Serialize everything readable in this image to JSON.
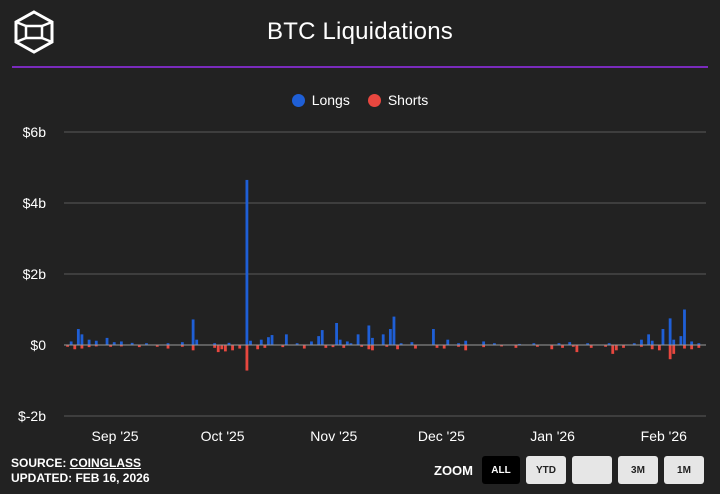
{
  "header": {
    "title": "BTC Liquidations"
  },
  "colors": {
    "longs": "#1f5fd6",
    "shorts": "#e8473f",
    "divider": "#7a2bbd",
    "background": "#222222"
  },
  "icons": {
    "logo": "cube-logo-icon"
  },
  "footer": {
    "source_prefix": "SOURCE: ",
    "source_name": "COINGLASS",
    "updated": "UPDATED: FEB 16, 2026"
  },
  "zoom": {
    "label": "ZOOM",
    "buttons": [
      "ALL",
      "YTD",
      "",
      "3M",
      "1M"
    ],
    "active": "ALL"
  },
  "chart_data": {
    "type": "bar",
    "title": "BTC Liquidations",
    "legend": [
      "Longs",
      "Shorts"
    ],
    "legend_position": "top-center",
    "ylim": [
      -2,
      6
    ],
    "y_ticks": [
      -2,
      0,
      2,
      4,
      6
    ],
    "y_tick_labels": [
      "$-2b",
      "$0",
      "$2b",
      "$4b",
      "$6b"
    ],
    "x_tick_labels": [
      "Sep '25",
      "Oct '25",
      "Nov '25",
      "Dec '25",
      "Jan '26",
      "Feb '26"
    ],
    "grid": true,
    "x_start": "2025-08-20",
    "x_end": "2026-02-15",
    "series": [
      {
        "name": "Longs",
        "points": [
          [
            "2025-08-22",
            0.1
          ],
          [
            "2025-08-24",
            0.45
          ],
          [
            "2025-08-25",
            0.3
          ],
          [
            "2025-08-27",
            0.15
          ],
          [
            "2025-08-29",
            0.12
          ],
          [
            "2025-09-01",
            0.2
          ],
          [
            "2025-09-03",
            0.08
          ],
          [
            "2025-09-05",
            0.1
          ],
          [
            "2025-09-08",
            0.06
          ],
          [
            "2025-09-12",
            0.05
          ],
          [
            "2025-09-18",
            0.05
          ],
          [
            "2025-09-22",
            0.08
          ],
          [
            "2025-09-25",
            0.72
          ],
          [
            "2025-09-26",
            0.15
          ],
          [
            "2025-10-01",
            0.05
          ],
          [
            "2025-10-05",
            0.06
          ],
          [
            "2025-10-10",
            4.65
          ],
          [
            "2025-10-11",
            0.12
          ],
          [
            "2025-10-14",
            0.15
          ],
          [
            "2025-10-16",
            0.22
          ],
          [
            "2025-10-17",
            0.28
          ],
          [
            "2025-10-21",
            0.3
          ],
          [
            "2025-10-24",
            0.05
          ],
          [
            "2025-10-28",
            0.1
          ],
          [
            "2025-10-30",
            0.25
          ],
          [
            "2025-10-31",
            0.42
          ],
          [
            "2025-11-04",
            0.62
          ],
          [
            "2025-11-05",
            0.15
          ],
          [
            "2025-11-07",
            0.1
          ],
          [
            "2025-11-08",
            0.05
          ],
          [
            "2025-11-10",
            0.3
          ],
          [
            "2025-11-13",
            0.55
          ],
          [
            "2025-11-14",
            0.2
          ],
          [
            "2025-11-17",
            0.3
          ],
          [
            "2025-11-19",
            0.45
          ],
          [
            "2025-11-20",
            0.8
          ],
          [
            "2025-11-22",
            0.05
          ],
          [
            "2025-11-25",
            0.08
          ],
          [
            "2025-12-01",
            0.45
          ],
          [
            "2025-12-05",
            0.15
          ],
          [
            "2025-12-08",
            0.05
          ],
          [
            "2025-12-10",
            0.12
          ],
          [
            "2025-12-15",
            0.1
          ],
          [
            "2025-12-18",
            0.05
          ],
          [
            "2025-12-25",
            0.03
          ],
          [
            "2025-12-29",
            0.05
          ],
          [
            "2026-01-05",
            0.05
          ],
          [
            "2026-01-08",
            0.08
          ],
          [
            "2026-01-13",
            0.05
          ],
          [
            "2026-01-19",
            0.05
          ],
          [
            "2026-01-26",
            0.05
          ],
          [
            "2026-01-28",
            0.15
          ],
          [
            "2026-01-30",
            0.3
          ],
          [
            "2026-01-31",
            0.12
          ],
          [
            "2026-02-03",
            0.45
          ],
          [
            "2026-02-05",
            0.75
          ],
          [
            "2026-02-06",
            0.15
          ],
          [
            "2026-02-08",
            0.25
          ],
          [
            "2026-02-09",
            1.0
          ],
          [
            "2026-02-11",
            0.1
          ],
          [
            "2026-02-13",
            0.05
          ]
        ]
      },
      {
        "name": "Shorts",
        "points": [
          [
            "2025-08-21",
            -0.05
          ],
          [
            "2025-08-23",
            -0.12
          ],
          [
            "2025-08-25",
            -0.1
          ],
          [
            "2025-08-27",
            -0.06
          ],
          [
            "2025-08-29",
            -0.04
          ],
          [
            "2025-09-02",
            -0.05
          ],
          [
            "2025-09-05",
            -0.04
          ],
          [
            "2025-09-10",
            -0.06
          ],
          [
            "2025-09-15",
            -0.05
          ],
          [
            "2025-09-18",
            -0.1
          ],
          [
            "2025-09-22",
            -0.05
          ],
          [
            "2025-09-25",
            -0.15
          ],
          [
            "2025-10-01",
            -0.08
          ],
          [
            "2025-10-02",
            -0.2
          ],
          [
            "2025-10-03",
            -0.12
          ],
          [
            "2025-10-04",
            -0.18
          ],
          [
            "2025-10-06",
            -0.15
          ],
          [
            "2025-10-08",
            -0.1
          ],
          [
            "2025-10-10",
            -0.72
          ],
          [
            "2025-10-13",
            -0.12
          ],
          [
            "2025-10-15",
            -0.08
          ],
          [
            "2025-10-20",
            -0.06
          ],
          [
            "2025-10-26",
            -0.1
          ],
          [
            "2025-11-01",
            -0.08
          ],
          [
            "2025-11-03",
            -0.06
          ],
          [
            "2025-11-06",
            -0.08
          ],
          [
            "2025-11-11",
            -0.05
          ],
          [
            "2025-11-13",
            -0.12
          ],
          [
            "2025-11-14",
            -0.15
          ],
          [
            "2025-11-18",
            -0.05
          ],
          [
            "2025-11-21",
            -0.12
          ],
          [
            "2025-11-26",
            -0.1
          ],
          [
            "2025-12-02",
            -0.08
          ],
          [
            "2025-12-04",
            -0.1
          ],
          [
            "2025-12-08",
            -0.05
          ],
          [
            "2025-12-10",
            -0.15
          ],
          [
            "2025-12-15",
            -0.06
          ],
          [
            "2025-12-20",
            -0.04
          ],
          [
            "2025-12-24",
            -0.08
          ],
          [
            "2025-12-30",
            -0.05
          ],
          [
            "2026-01-03",
            -0.12
          ],
          [
            "2026-01-06",
            -0.08
          ],
          [
            "2026-01-09",
            -0.05
          ],
          [
            "2026-01-10",
            -0.2
          ],
          [
            "2026-01-14",
            -0.08
          ],
          [
            "2026-01-18",
            -0.05
          ],
          [
            "2026-01-20",
            -0.25
          ],
          [
            "2026-01-21",
            -0.15
          ],
          [
            "2026-01-23",
            -0.08
          ],
          [
            "2026-01-28",
            -0.05
          ],
          [
            "2026-01-31",
            -0.12
          ],
          [
            "2026-02-02",
            -0.15
          ],
          [
            "2026-02-05",
            -0.4
          ],
          [
            "2026-02-06",
            -0.25
          ],
          [
            "2026-02-09",
            -0.1
          ],
          [
            "2026-02-11",
            -0.12
          ],
          [
            "2026-02-13",
            -0.08
          ]
        ]
      }
    ]
  }
}
